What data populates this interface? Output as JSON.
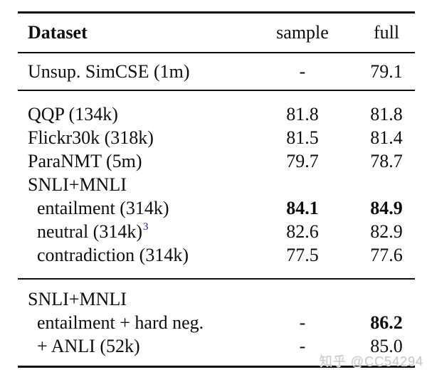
{
  "table": {
    "columns": [
      "Dataset",
      "sample",
      "full"
    ],
    "sections": [
      {
        "rows": [
          {
            "label": "Unsup. SimCSE (1m)",
            "sample": "-",
            "full": "79.1"
          }
        ]
      },
      {
        "rows": [
          {
            "label": "QQP (134k)",
            "sample": "81.8",
            "full": "81.8"
          },
          {
            "label": "Flickr30k (318k)",
            "sample": "81.5",
            "full": "81.4"
          },
          {
            "label": "ParaNMT (5m)",
            "sample": "79.7",
            "full": "78.7"
          },
          {
            "label": "SNLI+MNLI",
            "sample": "",
            "full": ""
          },
          {
            "label": "entailment (314k)",
            "sample": "84.1",
            "full": "84.9",
            "bold_sample": true,
            "bold_full": true,
            "indent": true
          },
          {
            "label": "neutral (314k)",
            "sup": "3",
            "sample": "82.6",
            "full": "82.9",
            "indent": true
          },
          {
            "label": "contradiction (314k)",
            "sample": "77.5",
            "full": "77.6",
            "indent": true
          }
        ]
      },
      {
        "rows": [
          {
            "label": "SNLI+MNLI",
            "sample": "",
            "full": ""
          },
          {
            "label": "entailment + hard neg.",
            "sample": "-",
            "full": "86.2",
            "bold_full": true,
            "indent": true
          },
          {
            "label": "+ ANLI (52k)",
            "sample": "-",
            "full": "85.0",
            "indent": true
          }
        ]
      }
    ]
  },
  "watermark": {
    "text": "知乎 @CC54294"
  },
  "colors": {
    "text": "#0d0d0d",
    "rule": "#0d0d0d",
    "footnote_ref": "#1b1b9e",
    "watermark": "#c9c9c9",
    "background": "#ffffff"
  }
}
